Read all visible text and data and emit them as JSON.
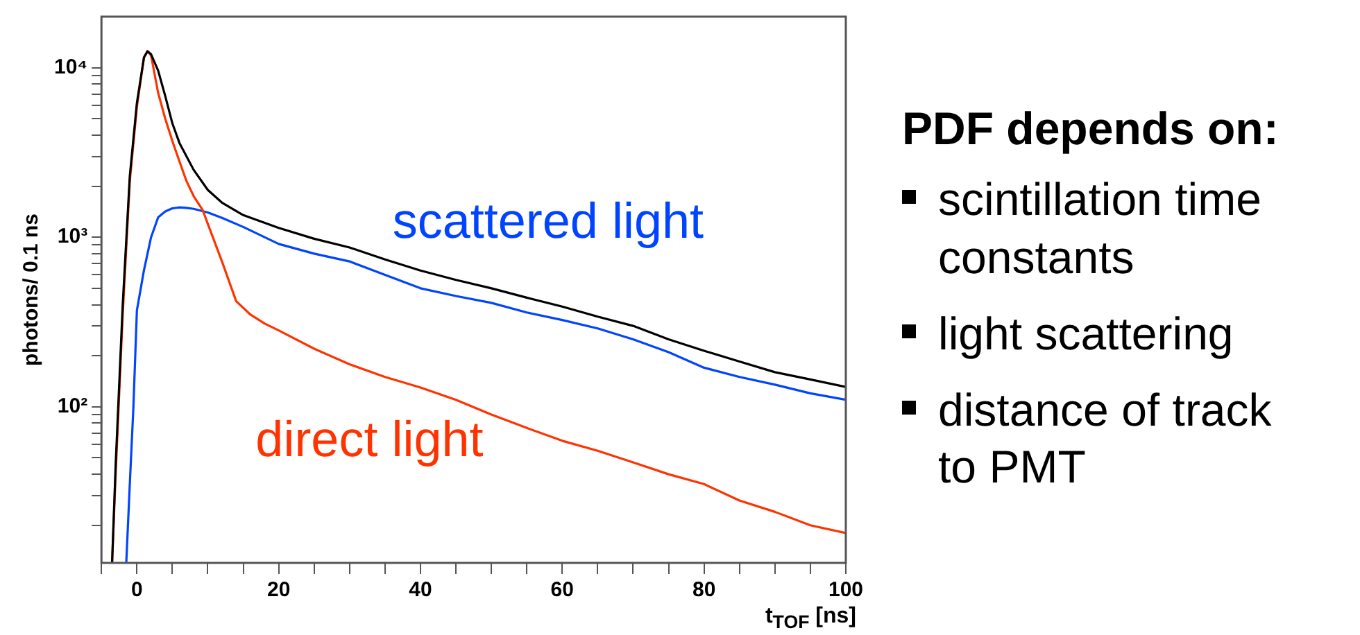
{
  "chart_data": {
    "type": "line",
    "xlabel": "t$_{TOF}$ [ns]",
    "ylabel": "photons/ 0.1 ns",
    "log": "y",
    "xlim": [
      -5,
      100
    ],
    "xticks": [
      {
        "value": -5,
        "label": null
      },
      0,
      {
        "value": 5,
        "label": null
      },
      {
        "value": 10,
        "label": null
      },
      {
        "value": 15,
        "label": null
      },
      20,
      {
        "value": 25,
        "label": null
      },
      {
        "value": 30,
        "label": null
      },
      {
        "value": 35,
        "label": null
      },
      40,
      {
        "value": 45,
        "label": null
      },
      {
        "value": 50,
        "label": null
      },
      {
        "value": 55,
        "label": null
      },
      60,
      {
        "value": 65,
        "label": null
      },
      {
        "value": 70,
        "label": null
      },
      {
        "value": 75,
        "label": null
      },
      80,
      {
        "value": 85,
        "label": null
      },
      {
        "value": 90,
        "label": null
      },
      {
        "value": 95,
        "label": null
      },
      100
    ],
    "ylim": [
      12,
      20000
    ],
    "yticks": [
      {
        "value": 20,
        "label": null
      },
      {
        "value": 30,
        "label": null
      },
      {
        "value": 40,
        "label": null
      },
      {
        "value": 50,
        "label": null
      },
      {
        "value": 60,
        "label": null
      },
      {
        "value": 70,
        "label": null
      },
      {
        "value": 80,
        "label": null
      },
      {
        "value": 90,
        "label": null
      },
      {
        "value": 100,
        "label": "10²"
      },
      {
        "value": 200,
        "label": null
      },
      {
        "value": 300,
        "label": null
      },
      {
        "value": 400,
        "label": null
      },
      {
        "value": 500,
        "label": null
      },
      {
        "value": 600,
        "label": null
      },
      {
        "value": 700,
        "label": null
      },
      {
        "value": 800,
        "label": null
      },
      {
        "value": 900,
        "label": null
      },
      {
        "value": 1000,
        "label": "10³"
      },
      {
        "value": 2000,
        "label": null
      },
      {
        "value": 3000,
        "label": null
      },
      {
        "value": 4000,
        "label": null
      },
      {
        "value": 5000,
        "label": null
      },
      {
        "value": 6000,
        "label": null
      },
      {
        "value": 7000,
        "label": null
      },
      {
        "value": 8000,
        "label": null
      },
      {
        "value": 9000,
        "label": null
      },
      {
        "value": 10000,
        "label": "10⁴"
      }
    ],
    "grid": false,
    "legend": false,
    "marker": "none",
    "line_style": "solid",
    "annotations": [
      "PDF depends on:",
      "scintillation time constants",
      "light scattering",
      "distance of track to PMT"
    ],
    "series": [
      {
        "color": "#000000",
        "x": [
          -3.5,
          -3,
          -2,
          -1,
          0,
          1,
          1.5,
          2,
          3,
          4,
          5,
          6,
          8,
          10,
          12,
          15,
          20,
          25,
          30,
          35,
          40,
          45,
          50,
          55,
          60,
          65,
          70,
          75,
          80,
          85,
          90,
          95,
          100
        ],
        "values": [
          12,
          45,
          400,
          2300,
          6200,
          11500,
          12500,
          12000,
          9600,
          6800,
          4700,
          3600,
          2500,
          1900,
          1600,
          1350,
          1135,
          980,
          870,
          740,
          636,
          560,
          500,
          440,
          390,
          340,
          300,
          250,
          214,
          185,
          160,
          145,
          131
        ]
      },
      {
        "name": "direct light",
        "color": "#ff3300",
        "x": [
          -3.5,
          -3,
          -2,
          -1,
          0,
          1,
          1.5,
          2,
          3,
          4,
          5,
          6,
          7,
          8,
          9.3,
          10,
          12,
          14,
          16,
          18,
          20,
          25,
          30,
          35,
          40,
          45,
          50,
          55,
          60,
          65,
          70,
          75,
          80,
          85,
          90,
          95,
          100
        ],
        "values": [
          12,
          40,
          350,
          2140,
          5900,
          11500,
          12500,
          11800,
          7100,
          5000,
          3700,
          2800,
          2140,
          1750,
          1440,
          1200,
          720,
          420,
          350,
          310,
          282,
          220,
          178,
          150,
          130,
          110,
          90,
          75,
          63,
          55,
          47,
          40,
          35,
          28,
          24,
          20,
          18
        ]
      },
      {
        "name": "scattered light",
        "color": "#0044ff",
        "x": [
          -1.5,
          -1,
          -0.5,
          0,
          1,
          2,
          3,
          4,
          5,
          6,
          7,
          8,
          10,
          12,
          15,
          20,
          25,
          30,
          35,
          40,
          45,
          50,
          55,
          60,
          65,
          70,
          75,
          80,
          85,
          90,
          95,
          100
        ],
        "values": [
          12,
          35,
          98,
          370,
          640,
          1000,
          1310,
          1420,
          1480,
          1500,
          1490,
          1470,
          1400,
          1300,
          1150,
          913,
          800,
          720,
          600,
          500,
          450,
          410,
          360,
          325,
          290,
          250,
          210,
          170,
          150,
          135,
          120,
          110
        ]
      }
    ]
  }
}
